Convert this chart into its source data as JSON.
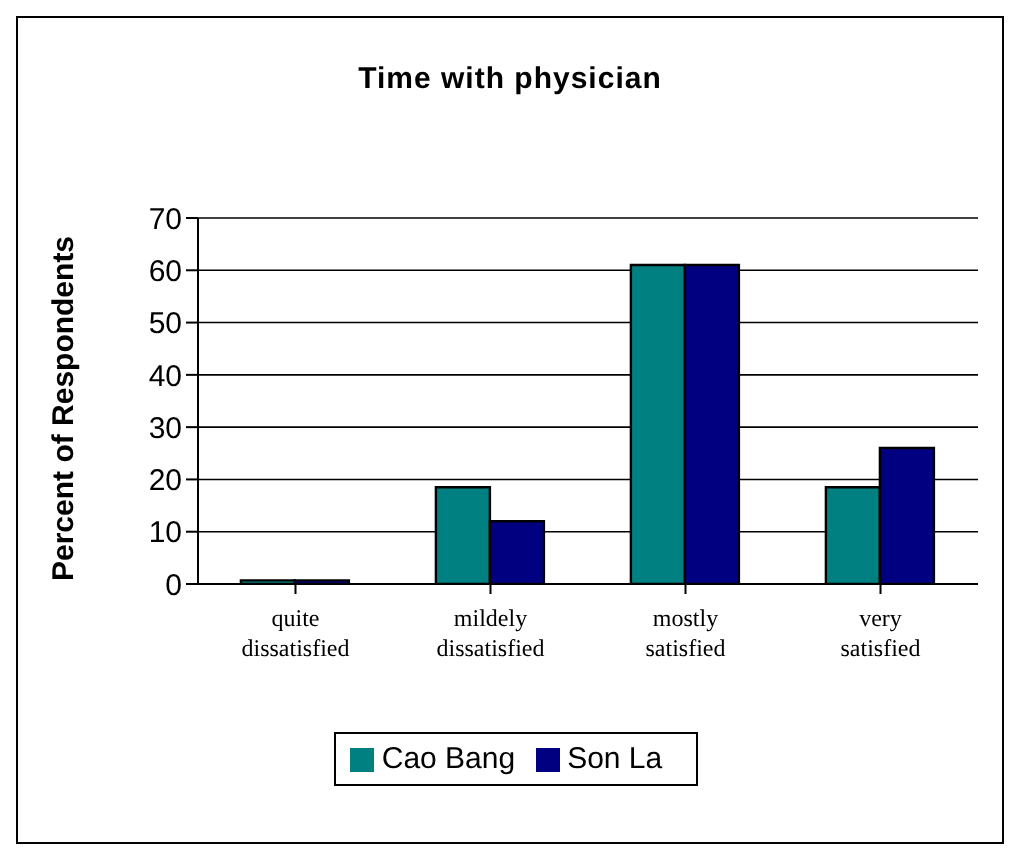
{
  "chart_data": {
    "type": "bar",
    "title": "Time with physician",
    "ylabel": "Percent of Respondents",
    "categories": [
      "quite dissatisfied",
      "mildely dissatisfied",
      "mostly satisfied",
      "very satisfied"
    ],
    "series": [
      {
        "name": "Cao Bang",
        "color": "#008080",
        "values": [
          0.7,
          18.5,
          61,
          18.5
        ]
      },
      {
        "name": "Son La",
        "color": "#000080",
        "values": [
          0.7,
          12,
          61,
          26
        ]
      }
    ],
    "ylim": [
      0,
      70
    ],
    "yticks": [
      0,
      10,
      20,
      30,
      40,
      50,
      60,
      70
    ],
    "grid": "y",
    "legend": "bottom"
  }
}
